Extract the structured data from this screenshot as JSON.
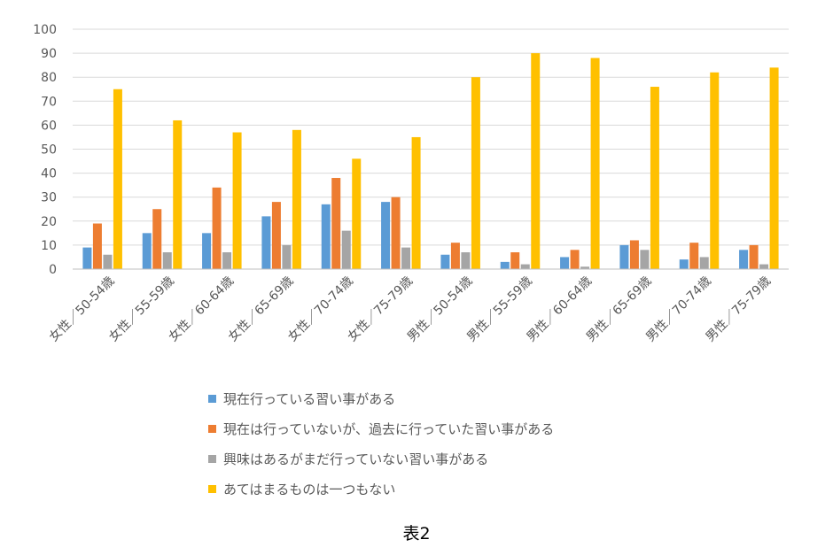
{
  "chart_data": {
    "type": "bar",
    "title": "",
    "xlabel": "",
    "ylabel": "",
    "ylim": [
      0,
      100
    ],
    "yticks": [
      0,
      10,
      20,
      30,
      40,
      50,
      60,
      70,
      80,
      90,
      100
    ],
    "grid": true,
    "legend_position": "bottom",
    "categories": [
      "女性／50-54歳",
      "女性／55-59歳",
      "女性／60-64歳",
      "女性／65-69歳",
      "女性／70-74歳",
      "女性／75-79歳",
      "男性／50-54歳",
      "男性／55-59歳",
      "男性／60-64歳",
      "男性／65-69歳",
      "男性／70-74歳",
      "男性／75-79歳"
    ],
    "series": [
      {
        "name": "現在行っている習い事がある",
        "color": "#5B9BD5",
        "values": [
          9,
          15,
          15,
          22,
          27,
          28,
          6,
          3,
          5,
          10,
          4,
          8
        ]
      },
      {
        "name": "現在は行っていないが、過去に行っていた習い事がある",
        "color": "#ED7D31",
        "values": [
          19,
          25,
          34,
          28,
          38,
          30,
          11,
          7,
          8,
          12,
          11,
          10
        ]
      },
      {
        "name": "興味はあるがまだ行っていない習い事がある",
        "color": "#A5A5A5",
        "values": [
          6,
          7,
          7,
          10,
          16,
          9,
          7,
          2,
          1,
          8,
          5,
          2
        ]
      },
      {
        "name": "あてはまるものは一つもない",
        "color": "#FFC000",
        "values": [
          75,
          62,
          57,
          58,
          46,
          55,
          80,
          90,
          88,
          76,
          82,
          84
        ]
      }
    ]
  },
  "caption": "表2"
}
